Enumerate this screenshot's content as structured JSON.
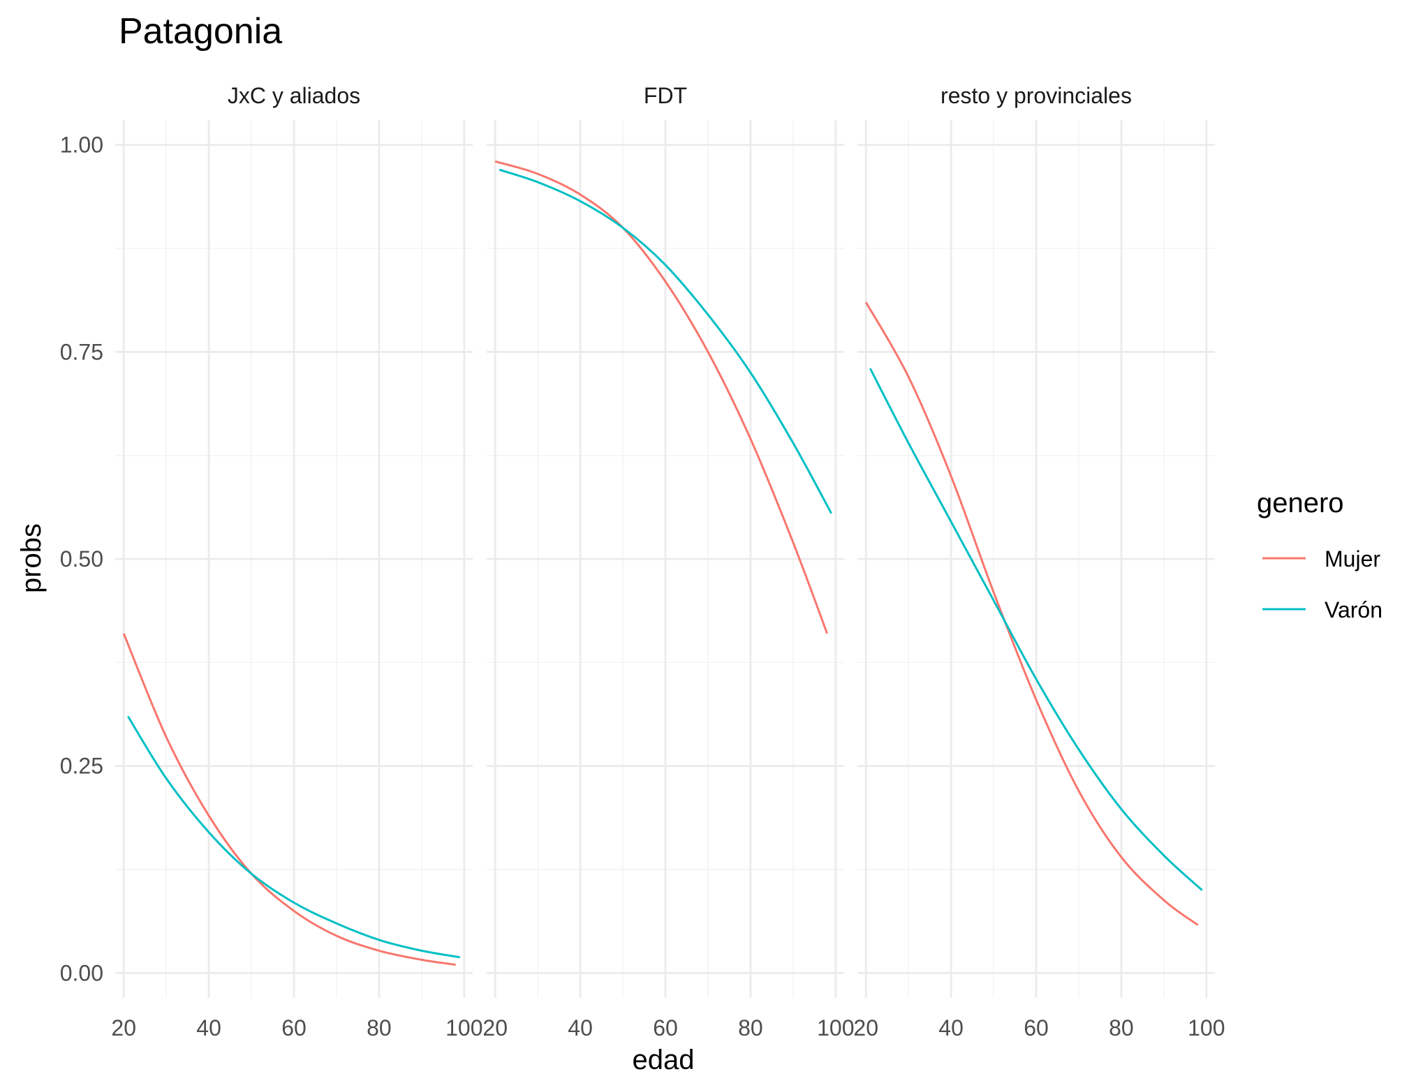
{
  "chart_data": {
    "type": "line",
    "title": "Patagonia",
    "xlabel": "edad",
    "ylabel": "probs",
    "xlim": [
      18,
      102
    ],
    "ylim": [
      -0.03,
      1.03
    ],
    "x_ticks": [
      20,
      40,
      60,
      80,
      100
    ],
    "x_tick_labels": [
      "20",
      "40",
      "60",
      "80",
      "100"
    ],
    "y_ticks": [
      0,
      0.25,
      0.5,
      0.75,
      1.0
    ],
    "y_tick_labels": [
      "0.00",
      "0.25",
      "0.50",
      "0.75",
      "1.00"
    ],
    "grid": true,
    "facets": [
      {
        "label": "JxC y aliados",
        "series": [
          {
            "name": "Mujer",
            "x": [
              20,
              30,
              40,
              50,
              60,
              70,
              80,
              90,
              98
            ],
            "y": [
              0.41,
              0.285,
              0.19,
              0.12,
              0.075,
              0.045,
              0.027,
              0.016,
              0.01
            ]
          },
          {
            "name": "Varón",
            "x": [
              21,
              30,
              40,
              50,
              60,
              70,
              80,
              90,
              99
            ],
            "y": [
              0.31,
              0.235,
              0.17,
              0.12,
              0.085,
              0.06,
              0.04,
              0.027,
              0.019
            ]
          }
        ]
      },
      {
        "label": "FDT",
        "series": [
          {
            "name": "Mujer",
            "x": [
              20,
              30,
              40,
              50,
              60,
              70,
              80,
              90,
              98
            ],
            "y": [
              0.98,
              0.965,
              0.94,
              0.9,
              0.835,
              0.75,
              0.645,
              0.52,
              0.41
            ]
          },
          {
            "name": "Varón",
            "x": [
              21,
              30,
              40,
              50,
              60,
              70,
              80,
              90,
              99
            ],
            "y": [
              0.97,
              0.955,
              0.932,
              0.9,
              0.855,
              0.795,
              0.725,
              0.64,
              0.555
            ]
          }
        ]
      },
      {
        "label": "resto y provinciales",
        "series": [
          {
            "name": "Mujer",
            "x": [
              20,
              30,
              40,
              50,
              60,
              70,
              80,
              90,
              98
            ],
            "y": [
              0.81,
              0.72,
              0.6,
              0.46,
              0.33,
              0.22,
              0.14,
              0.088,
              0.058
            ]
          },
          {
            "name": "Varón",
            "x": [
              21,
              30,
              40,
              50,
              60,
              70,
              80,
              90,
              99
            ],
            "y": [
              0.73,
              0.64,
              0.545,
              0.45,
              0.355,
              0.27,
              0.198,
              0.142,
              0.1
            ]
          }
        ]
      }
    ],
    "legend": {
      "title": "genero",
      "position": "right",
      "entries": [
        {
          "name": "Mujer",
          "color": "#f8766d"
        },
        {
          "name": "Varón",
          "color": "#00bfc4"
        }
      ]
    }
  }
}
